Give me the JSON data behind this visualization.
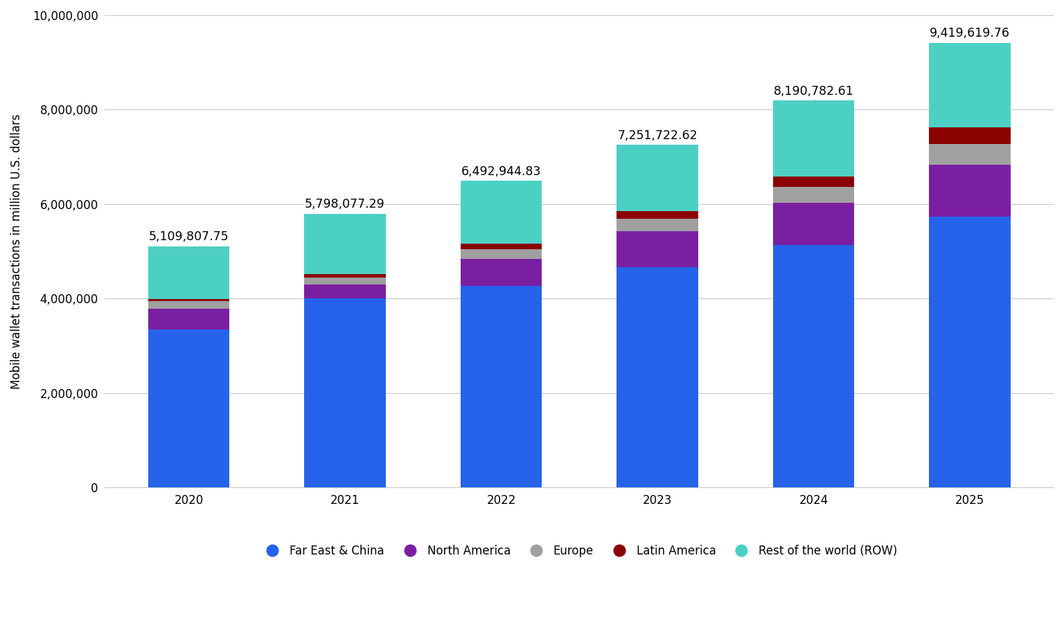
{
  "years": [
    2020,
    2021,
    2022,
    2023,
    2024,
    2025
  ],
  "totals": [
    5109807.75,
    5798077.29,
    6492944.83,
    7251722.62,
    8190782.61,
    9419619.76
  ],
  "segments": {
    "Far East & China": [
      3350000,
      4000000,
      4270000,
      4670000,
      5130000,
      5740000
    ],
    "North America": [
      430000,
      290000,
      570000,
      760000,
      900000,
      1100000
    ],
    "Europe": [
      160000,
      155000,
      200000,
      265000,
      330000,
      435000
    ],
    "Latin America": [
      50000,
      70000,
      120000,
      155000,
      230000,
      355000
    ],
    "Rest of the world (ROW)": [
      1119807.75,
      1283077.29,
      1332944.83,
      1401722.62,
      1600782.61,
      1789619.76
    ]
  },
  "colors": {
    "Far East & China": "#2563EB",
    "North America": "#7B1FA2",
    "Europe": "#A0A0A0",
    "Latin America": "#8B0000",
    "Rest of the world (ROW)": "#4DD0C4"
  },
  "ylabel": "Mobile wallet transactions in million U.S. dollars",
  "ylim": [
    0,
    10000000
  ],
  "yticks": [
    0,
    2000000,
    4000000,
    6000000,
    8000000,
    10000000
  ],
  "ytick_labels": [
    "0",
    "2,000,000",
    "4,000,000",
    "6,000,000",
    "8,000,000",
    "10,000,000"
  ],
  "background_color": "#FFFFFF",
  "grid_color": "#C8C8C8",
  "bar_width": 0.52,
  "annotation_fontsize": 12.5,
  "axis_fontsize": 12,
  "legend_fontsize": 12,
  "legend_marker_size": 14
}
